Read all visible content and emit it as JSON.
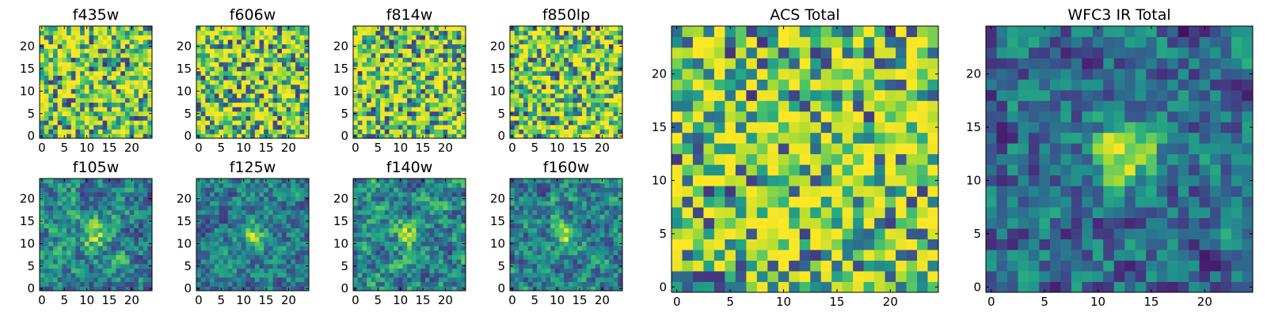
{
  "chart_data": [
    {
      "type": "heatmap",
      "title": "f435w",
      "colormap": "viridis",
      "size": 25,
      "seed": 11,
      "mode": "noise",
      "vmin": 0.15,
      "vmax": 1.0,
      "xlim": [
        0,
        24
      ],
      "ylim": [
        0,
        24
      ],
      "xticks": [
        0,
        5,
        10,
        15,
        20
      ],
      "yticks": [
        0,
        5,
        10,
        15,
        20
      ],
      "xtick_labels": [
        "0",
        "5",
        "10",
        "15",
        "20"
      ],
      "ytick_labels": [
        "0",
        "5",
        "10",
        "15",
        "20"
      ]
    },
    {
      "type": "heatmap",
      "title": "f606w",
      "colormap": "viridis",
      "size": 25,
      "seed": 23,
      "mode": "noise",
      "vmin": 0.15,
      "vmax": 1.0,
      "xlim": [
        0,
        24
      ],
      "ylim": [
        0,
        24
      ],
      "xticks": [
        0,
        5,
        10,
        15,
        20
      ],
      "yticks": [
        0,
        5,
        10,
        15,
        20
      ],
      "xtick_labels": [
        "0",
        "5",
        "10",
        "15",
        "20"
      ],
      "ytick_labels": [
        "0",
        "5",
        "10",
        "15",
        "20"
      ]
    },
    {
      "type": "heatmap",
      "title": "f814w",
      "colormap": "viridis",
      "size": 25,
      "seed": 37,
      "mode": "noise",
      "vmin": 0.15,
      "vmax": 1.0,
      "xlim": [
        0,
        24
      ],
      "ylim": [
        0,
        24
      ],
      "xticks": [
        0,
        5,
        10,
        15,
        20
      ],
      "yticks": [
        0,
        5,
        10,
        15,
        20
      ],
      "xtick_labels": [
        "0",
        "5",
        "10",
        "15",
        "20"
      ],
      "ytick_labels": [
        "0",
        "5",
        "10",
        "15",
        "20"
      ]
    },
    {
      "type": "heatmap",
      "title": "f850lp",
      "colormap": "viridis",
      "size": 25,
      "seed": 41,
      "mode": "noise",
      "vmin": 0.15,
      "vmax": 1.0,
      "xlim": [
        0,
        24
      ],
      "ylim": [
        0,
        24
      ],
      "xticks": [
        0,
        5,
        10,
        15,
        20
      ],
      "yticks": [
        0,
        5,
        10,
        15,
        20
      ],
      "xtick_labels": [
        "0",
        "5",
        "10",
        "15",
        "20"
      ],
      "ytick_labels": [
        "0",
        "5",
        "10",
        "15",
        "20"
      ]
    },
    {
      "type": "heatmap",
      "title": "f105w",
      "colormap": "viridis",
      "size": 25,
      "seed": 53,
      "mode": "source",
      "source_center": [
        12,
        12
      ],
      "source_strength": 0.35,
      "vmin": 0.15,
      "vmax": 1.0,
      "xlim": [
        0,
        24
      ],
      "ylim": [
        0,
        24
      ],
      "xticks": [
        0,
        5,
        10,
        15,
        20
      ],
      "yticks": [
        0,
        5,
        10,
        15,
        20
      ],
      "xtick_labels": [
        "0",
        "5",
        "10",
        "15",
        "20"
      ],
      "ytick_labels": [
        "0",
        "5",
        "10",
        "15",
        "20"
      ]
    },
    {
      "type": "heatmap",
      "title": "f125w",
      "colormap": "viridis",
      "size": 25,
      "seed": 67,
      "mode": "source",
      "source_center": [
        12,
        12
      ],
      "source_strength": 0.35,
      "vmin": 0.15,
      "vmax": 1.0,
      "xlim": [
        0,
        24
      ],
      "ylim": [
        0,
        24
      ],
      "xticks": [
        0,
        5,
        10,
        15,
        20
      ],
      "yticks": [
        0,
        5,
        10,
        15,
        20
      ],
      "xtick_labels": [
        "0",
        "5",
        "10",
        "15",
        "20"
      ],
      "ytick_labels": [
        "0",
        "5",
        "10",
        "15",
        "20"
      ]
    },
    {
      "type": "heatmap",
      "title": "f140w",
      "colormap": "viridis",
      "size": 25,
      "seed": 71,
      "mode": "source",
      "source_center": [
        12,
        12
      ],
      "source_strength": 0.3,
      "vmin": 0.15,
      "vmax": 1.0,
      "xlim": [
        0,
        24
      ],
      "ylim": [
        0,
        24
      ],
      "xticks": [
        0,
        5,
        10,
        15,
        20
      ],
      "yticks": [
        0,
        5,
        10,
        15,
        20
      ],
      "xtick_labels": [
        "0",
        "5",
        "10",
        "15",
        "20"
      ],
      "ytick_labels": [
        "0",
        "5",
        "10",
        "15",
        "20"
      ]
    },
    {
      "type": "heatmap",
      "title": "f160w",
      "colormap": "viridis",
      "size": 25,
      "seed": 89,
      "mode": "source",
      "source_center": [
        12,
        12
      ],
      "source_strength": 0.35,
      "vmin": 0.15,
      "vmax": 1.0,
      "xlim": [
        0,
        24
      ],
      "ylim": [
        0,
        24
      ],
      "xticks": [
        0,
        5,
        10,
        15,
        20
      ],
      "yticks": [
        0,
        5,
        10,
        15,
        20
      ],
      "xtick_labels": [
        "0",
        "5",
        "10",
        "15",
        "20"
      ],
      "ytick_labels": [
        "0",
        "5",
        "10",
        "15",
        "20"
      ]
    },
    {
      "type": "heatmap",
      "title": "ACS Total",
      "colormap": "viridis",
      "size": 25,
      "seed": 97,
      "mode": "noise",
      "vmin": 0.15,
      "vmax": 1.0,
      "xlim": [
        0,
        24
      ],
      "ylim": [
        0,
        24
      ],
      "xticks": [
        0,
        5,
        10,
        15,
        20
      ],
      "yticks": [
        0,
        5,
        10,
        15,
        20
      ],
      "xtick_labels": [
        "0",
        "5",
        "10",
        "15",
        "20"
      ],
      "ytick_labels": [
        "0",
        "5",
        "10",
        "15",
        "20"
      ]
    },
    {
      "type": "heatmap",
      "title": "WFC3 IR Total",
      "colormap": "viridis",
      "size": 25,
      "seed": 113,
      "mode": "source",
      "source_center": [
        12.5,
        12.5
      ],
      "source_strength": 0.55,
      "vmin": 0.05,
      "vmax": 1.0,
      "xlim": [
        0,
        24
      ],
      "ylim": [
        0,
        24
      ],
      "xticks": [
        0,
        5,
        10,
        15,
        20
      ],
      "yticks": [
        0,
        5,
        10,
        15,
        20
      ],
      "xtick_labels": [
        "0",
        "5",
        "10",
        "15",
        "20"
      ],
      "ytick_labels": [
        "0",
        "5",
        "10",
        "15",
        "20"
      ]
    }
  ]
}
